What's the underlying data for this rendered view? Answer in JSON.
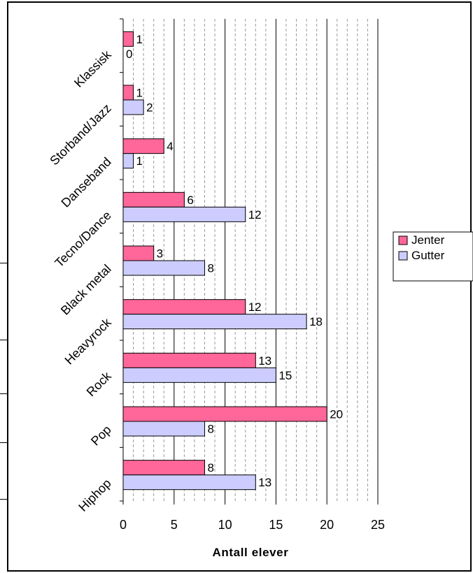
{
  "chart_data": {
    "type": "bar",
    "orientation": "horizontal",
    "categories": [
      "Klassisk",
      "Storband/Jazz",
      "Danseband",
      "Tecno/Dance",
      "Black metal",
      "Heavyrock",
      "Rock",
      "Pop",
      "Hiphop"
    ],
    "series": [
      {
        "name": "Jenter",
        "values": [
          1,
          1,
          4,
          6,
          3,
          12,
          13,
          20,
          8
        ],
        "color": "#ff6699"
      },
      {
        "name": "Gutter",
        "values": [
          0,
          2,
          1,
          12,
          8,
          18,
          15,
          8,
          13
        ],
        "color": "#ccccff"
      }
    ],
    "xlabel": "Antall elever",
    "xlim": [
      0,
      25
    ],
    "xticks": [
      "0",
      "5",
      "10",
      "15",
      "20",
      "25"
    ],
    "grid": "vertical major and minor (dashed) gridlines",
    "legend": "right"
  },
  "colors": {
    "gridMajor": "#000000",
    "gridMinor": "#999999",
    "bar_border": "#000000"
  }
}
